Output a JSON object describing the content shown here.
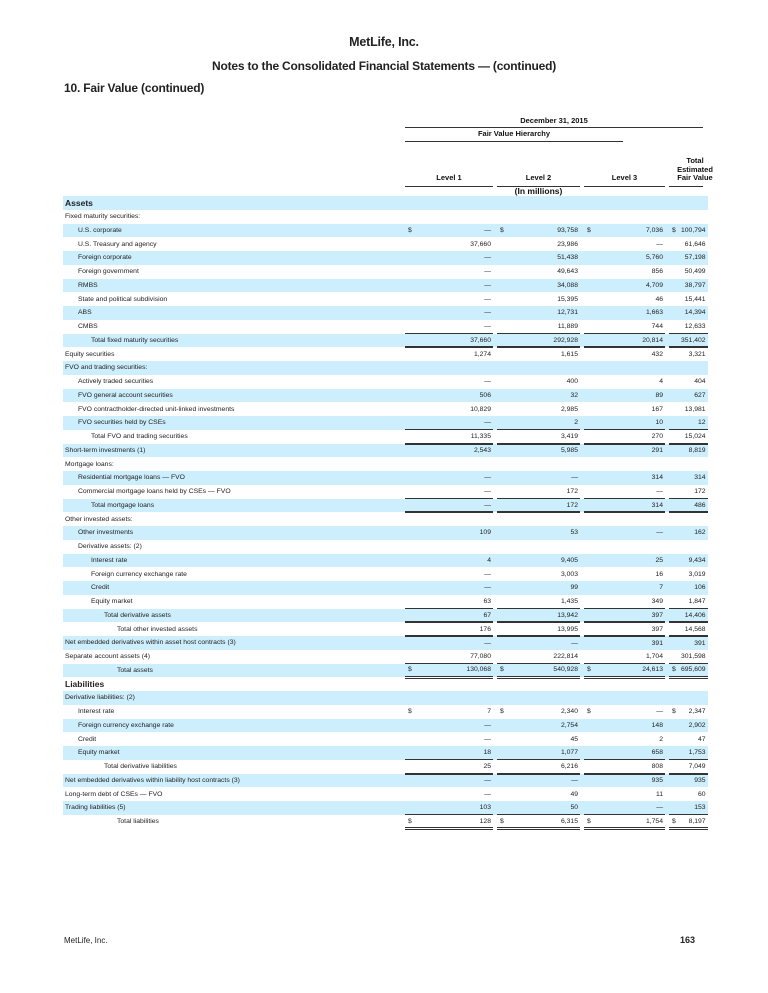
{
  "header": {
    "company": "MetLife, Inc.",
    "subtitle": "Notes to the Consolidated Financial Statements — (continued)",
    "section": "10. Fair Value (continued)"
  },
  "table": {
    "date_header": "December 31, 2015",
    "hierarchy_header": "Fair Value Hierarchy",
    "columns": [
      "Level 1",
      "Level 2",
      "Level 3",
      "Total Estimated\nFair Value"
    ],
    "units": "(In millions)",
    "rows": [
      {
        "label": "Assets",
        "indent": 0,
        "bold": true,
        "values": [
          "",
          "",
          "",
          ""
        ]
      },
      {
        "label": "Fixed maturity securities:",
        "indent": 0,
        "values": [
          "",
          "",
          "",
          ""
        ]
      },
      {
        "label": "U.S. corporate",
        "indent": 1,
        "dollar": true,
        "values": [
          "—",
          "93,758",
          "7,036",
          "100,794"
        ]
      },
      {
        "label": "U.S. Treasury and agency",
        "indent": 1,
        "values": [
          "37,660",
          "23,986",
          "—",
          "61,646"
        ]
      },
      {
        "label": "Foreign corporate",
        "indent": 1,
        "values": [
          "—",
          "51,438",
          "5,760",
          "57,198"
        ]
      },
      {
        "label": "Foreign government",
        "indent": 1,
        "values": [
          "—",
          "49,643",
          "856",
          "50,499"
        ]
      },
      {
        "label": "RMBS",
        "indent": 1,
        "values": [
          "—",
          "34,088",
          "4,709",
          "38,797"
        ]
      },
      {
        "label": "State and political subdivision",
        "indent": 1,
        "values": [
          "—",
          "15,395",
          "46",
          "15,441"
        ]
      },
      {
        "label": "ABS",
        "indent": 1,
        "values": [
          "—",
          "12,731",
          "1,663",
          "14,394"
        ]
      },
      {
        "label": "CMBS",
        "indent": 1,
        "values": [
          "—",
          "11,889",
          "744",
          "12,633"
        ]
      },
      {
        "label": "Total fixed maturity securities",
        "indent": 2,
        "total": true,
        "values": [
          "37,660",
          "292,928",
          "20,814",
          "351,402"
        ]
      },
      {
        "label": "Equity securities",
        "indent": 0,
        "values": [
          "1,274",
          "1,615",
          "432",
          "3,321"
        ]
      },
      {
        "label": "FVO and trading securities:",
        "indent": 0,
        "values": [
          "",
          "",
          "",
          ""
        ]
      },
      {
        "label": "Actively traded securities",
        "indent": 1,
        "values": [
          "—",
          "400",
          "4",
          "404"
        ]
      },
      {
        "label": "FVO general account securities",
        "indent": 1,
        "values": [
          "506",
          "32",
          "89",
          "627"
        ]
      },
      {
        "label": "FVO contractholder-directed unit-linked investments",
        "indent": 1,
        "values": [
          "10,829",
          "2,985",
          "167",
          "13,981"
        ]
      },
      {
        "label": "FVO securities held by CSEs",
        "indent": 1,
        "values": [
          "—",
          "2",
          "10",
          "12"
        ]
      },
      {
        "label": "Total FVO and trading securities",
        "indent": 2,
        "total": true,
        "values": [
          "11,335",
          "3,419",
          "270",
          "15,024"
        ]
      },
      {
        "label": "Short-term investments (1)",
        "indent": 0,
        "values": [
          "2,543",
          "5,985",
          "291",
          "8,819"
        ]
      },
      {
        "label": "Mortgage loans:",
        "indent": 0,
        "values": [
          "",
          "",
          "",
          ""
        ]
      },
      {
        "label": "Residential mortgage loans — FVO",
        "indent": 1,
        "values": [
          "—",
          "—",
          "314",
          "314"
        ]
      },
      {
        "label": "Commercial mortgage loans held by CSEs — FVO",
        "indent": 1,
        "values": [
          "—",
          "172",
          "—",
          "172"
        ]
      },
      {
        "label": "Total mortgage loans",
        "indent": 2,
        "total": true,
        "values": [
          "—",
          "172",
          "314",
          "486"
        ]
      },
      {
        "label": "Other invested assets:",
        "indent": 0,
        "values": [
          "",
          "",
          "",
          ""
        ]
      },
      {
        "label": "Other investments",
        "indent": 1,
        "values": [
          "109",
          "53",
          "—",
          "162"
        ]
      },
      {
        "label": "Derivative assets: (2)",
        "indent": 1,
        "values": [
          "",
          "",
          "",
          ""
        ]
      },
      {
        "label": "Interest rate",
        "indent": 2,
        "values": [
          "4",
          "9,405",
          "25",
          "9,434"
        ]
      },
      {
        "label": "Foreign currency exchange rate",
        "indent": 2,
        "values": [
          "—",
          "3,003",
          "16",
          "3,019"
        ]
      },
      {
        "label": "Credit",
        "indent": 2,
        "values": [
          "—",
          "99",
          "7",
          "106"
        ]
      },
      {
        "label": "Equity market",
        "indent": 2,
        "values": [
          "63",
          "1,435",
          "349",
          "1,847"
        ]
      },
      {
        "label": "Total derivative assets",
        "indent": 3,
        "total": true,
        "values": [
          "67",
          "13,942",
          "397",
          "14,406"
        ]
      },
      {
        "label": "Total other invested assets",
        "indent": 4,
        "total": true,
        "values": [
          "176",
          "13,995",
          "397",
          "14,568"
        ]
      },
      {
        "label": "Net embedded derivatives within asset host contracts (3)",
        "indent": 0,
        "values": [
          "—",
          "—",
          "391",
          "391"
        ]
      },
      {
        "label": "Separate account assets (4)",
        "indent": 0,
        "values": [
          "77,080",
          "222,814",
          "1,704",
          "301,598"
        ]
      },
      {
        "label": "Total assets",
        "indent": 4,
        "total": true,
        "double": true,
        "dollar": true,
        "values": [
          "130,068",
          "540,928",
          "24,613",
          "695,609"
        ]
      },
      {
        "label": "Liabilities",
        "indent": 0,
        "bold": true,
        "values": [
          "",
          "",
          "",
          ""
        ]
      },
      {
        "label": "Derivative liabilities: (2)",
        "indent": 0,
        "values": [
          "",
          "",
          "",
          ""
        ]
      },
      {
        "label": "Interest rate",
        "indent": 1,
        "dollar": true,
        "values": [
          "7",
          "2,340",
          "—",
          "2,347"
        ]
      },
      {
        "label": "Foreign currency exchange rate",
        "indent": 1,
        "values": [
          "—",
          "2,754",
          "148",
          "2,902"
        ]
      },
      {
        "label": "Credit",
        "indent": 1,
        "values": [
          "—",
          "45",
          "2",
          "47"
        ]
      },
      {
        "label": "Equity market",
        "indent": 1,
        "values": [
          "18",
          "1,077",
          "658",
          "1,753"
        ]
      },
      {
        "label": "Total derivative liabilities",
        "indent": 3,
        "total": true,
        "values": [
          "25",
          "6,216",
          "808",
          "7,049"
        ]
      },
      {
        "label": "Net embedded derivatives within liability host contracts (3)",
        "indent": 0,
        "values": [
          "—",
          "—",
          "935",
          "935"
        ]
      },
      {
        "label": "Long-term debt of CSEs — FVO",
        "indent": 0,
        "values": [
          "—",
          "49",
          "11",
          "60"
        ]
      },
      {
        "label": "Trading liabilities (5)",
        "indent": 0,
        "values": [
          "103",
          "50",
          "—",
          "153"
        ]
      },
      {
        "label": "Total liabilities",
        "indent": 4,
        "total": true,
        "double": true,
        "dollar": true,
        "values": [
          "128",
          "6,315",
          "1,754",
          "8,197"
        ]
      }
    ]
  },
  "footer": {
    "company": "MetLife, Inc.",
    "page": "163"
  },
  "colors": {
    "row_shade": "#cdeefc"
  }
}
